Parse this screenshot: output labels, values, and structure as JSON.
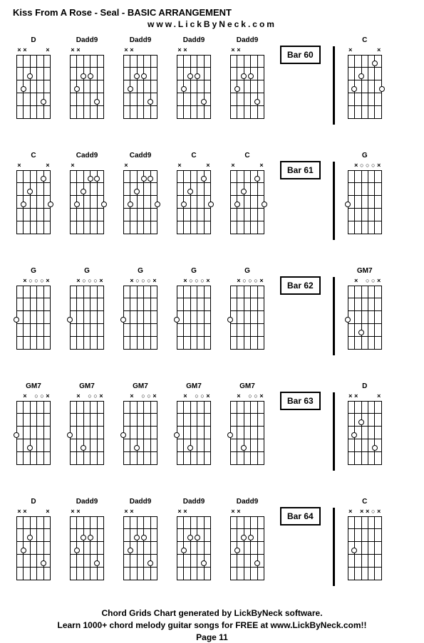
{
  "title": "Kiss From A Rose - Seal - BASIC ARRANGEMENT",
  "subtitle": "www.LickByNeck.com",
  "footer_line1": "Chord Grids Chart generated by LickByNeck software.",
  "footer_line2": "Learn 1000+ chord melody guitar songs for FREE at www.LickByNeck.com!!",
  "page_label": "Page 11",
  "frets": 5,
  "strings": 6,
  "marker_x": "×",
  "marker_o": "○",
  "marker_none": "",
  "rows": [
    {
      "bar": "Bar 60",
      "chords": [
        {
          "name": "D",
          "markers": [
            "x",
            "x",
            "",
            "",
            "",
            "x"
          ],
          "dots": [
            [
              2,
              2
            ],
            [
              3,
              1
            ],
            [
              4,
              4
            ]
          ]
        },
        {
          "name": "Dadd9",
          "markers": [
            "x",
            "x",
            "",
            "",
            "",
            ""
          ],
          "dots": [
            [
              2,
              2
            ],
            [
              3,
              1
            ],
            [
              2,
              3
            ],
            [
              4,
              4
            ]
          ]
        },
        {
          "name": "Dadd9",
          "markers": [
            "x",
            "x",
            "",
            "",
            "",
            ""
          ],
          "dots": [
            [
              2,
              2
            ],
            [
              3,
              1
            ],
            [
              2,
              3
            ],
            [
              4,
              4
            ]
          ]
        },
        {
          "name": "Dadd9",
          "markers": [
            "x",
            "x",
            "",
            "",
            "",
            ""
          ],
          "dots": [
            [
              2,
              2
            ],
            [
              3,
              1
            ],
            [
              2,
              3
            ],
            [
              4,
              4
            ]
          ]
        },
        {
          "name": "Dadd9",
          "markers": [
            "x",
            "x",
            "",
            "",
            "",
            ""
          ],
          "dots": [
            [
              2,
              2
            ],
            [
              3,
              1
            ],
            [
              2,
              3
            ],
            [
              4,
              4
            ]
          ]
        }
      ],
      "after": {
        "name": "C",
        "markers": [
          "x",
          "",
          "",
          "",
          "",
          "x"
        ],
        "dots": [
          [
            3,
            1
          ],
          [
            2,
            2
          ],
          [
            1,
            4
          ],
          [
            3,
            5
          ]
        ]
      }
    },
    {
      "bar": "Bar 61",
      "chords": [
        {
          "name": "C",
          "markers": [
            "x",
            "",
            "",
            "",
            "",
            "x"
          ],
          "dots": [
            [
              3,
              1
            ],
            [
              2,
              2
            ],
            [
              1,
              4
            ],
            [
              3,
              5
            ]
          ]
        },
        {
          "name": "Cadd9",
          "markers": [
            "x",
            "",
            "",
            "",
            "",
            ""
          ],
          "dots": [
            [
              3,
              1
            ],
            [
              2,
              2
            ],
            [
              1,
              4
            ],
            [
              1,
              3
            ],
            [
              3,
              5
            ]
          ]
        },
        {
          "name": "Cadd9",
          "markers": [
            "x",
            "",
            "",
            "",
            "",
            ""
          ],
          "dots": [
            [
              3,
              1
            ],
            [
              2,
              2
            ],
            [
              1,
              4
            ],
            [
              1,
              3
            ],
            [
              3,
              5
            ]
          ]
        },
        {
          "name": "C",
          "markers": [
            "x",
            "",
            "",
            "",
            "",
            "x"
          ],
          "dots": [
            [
              3,
              1
            ],
            [
              2,
              2
            ],
            [
              1,
              4
            ],
            [
              3,
              5
            ]
          ]
        },
        {
          "name": "C",
          "markers": [
            "x",
            "",
            "",
            "",
            "",
            "x"
          ],
          "dots": [
            [
              3,
              1
            ],
            [
              2,
              2
            ],
            [
              1,
              4
            ],
            [
              3,
              5
            ]
          ]
        }
      ],
      "after": {
        "name": "G",
        "markers": [
          "",
          "x",
          "o",
          "o",
          "o",
          "x"
        ],
        "dots": [
          [
            3,
            0
          ]
        ]
      }
    },
    {
      "bar": "Bar 62",
      "chords": [
        {
          "name": "G",
          "markers": [
            "",
            "x",
            "o",
            "o",
            "o",
            "x"
          ],
          "dots": [
            [
              3,
              0
            ]
          ]
        },
        {
          "name": "G",
          "markers": [
            "",
            "x",
            "o",
            "o",
            "o",
            "x"
          ],
          "dots": [
            [
              3,
              0
            ]
          ]
        },
        {
          "name": "G",
          "markers": [
            "",
            "x",
            "o",
            "o",
            "o",
            "x"
          ],
          "dots": [
            [
              3,
              0
            ]
          ]
        },
        {
          "name": "G",
          "markers": [
            "",
            "x",
            "o",
            "o",
            "o",
            "x"
          ],
          "dots": [
            [
              3,
              0
            ]
          ]
        },
        {
          "name": "G",
          "markers": [
            "",
            "x",
            "o",
            "o",
            "o",
            "x"
          ],
          "dots": [
            [
              3,
              0
            ]
          ]
        }
      ],
      "after": {
        "name": "GM7",
        "markers": [
          "",
          "x",
          "",
          "o",
          "o",
          "x"
        ],
        "dots": [
          [
            3,
            0
          ],
          [
            4,
            2
          ]
        ]
      }
    },
    {
      "bar": "Bar 63",
      "chords": [
        {
          "name": "GM7",
          "markers": [
            "",
            "x",
            "",
            "o",
            "o",
            "x"
          ],
          "dots": [
            [
              3,
              0
            ],
            [
              4,
              2
            ]
          ]
        },
        {
          "name": "GM7",
          "markers": [
            "",
            "x",
            "",
            "o",
            "o",
            "x"
          ],
          "dots": [
            [
              3,
              0
            ],
            [
              4,
              2
            ]
          ]
        },
        {
          "name": "GM7",
          "markers": [
            "",
            "x",
            "",
            "o",
            "o",
            "x"
          ],
          "dots": [
            [
              3,
              0
            ],
            [
              4,
              2
            ]
          ]
        },
        {
          "name": "GM7",
          "markers": [
            "",
            "x",
            "",
            "o",
            "o",
            "x"
          ],
          "dots": [
            [
              3,
              0
            ],
            [
              4,
              2
            ]
          ]
        },
        {
          "name": "GM7",
          "markers": [
            "",
            "x",
            "",
            "o",
            "o",
            "x"
          ],
          "dots": [
            [
              3,
              0
            ],
            [
              4,
              2
            ]
          ]
        }
      ],
      "after": {
        "name": "D",
        "markers": [
          "x",
          "x",
          "",
          "",
          "",
          "x"
        ],
        "dots": [
          [
            2,
            2
          ],
          [
            3,
            1
          ],
          [
            4,
            4
          ]
        ]
      }
    },
    {
      "bar": "Bar 64",
      "chords": [
        {
          "name": "D",
          "markers": [
            "x",
            "x",
            "",
            "",
            "",
            "x"
          ],
          "dots": [
            [
              2,
              2
            ],
            [
              3,
              1
            ],
            [
              4,
              4
            ]
          ]
        },
        {
          "name": "Dadd9",
          "markers": [
            "x",
            "x",
            "",
            "",
            "",
            ""
          ],
          "dots": [
            [
              2,
              2
            ],
            [
              3,
              1
            ],
            [
              2,
              3
            ],
            [
              4,
              4
            ]
          ]
        },
        {
          "name": "Dadd9",
          "markers": [
            "x",
            "x",
            "",
            "",
            "",
            ""
          ],
          "dots": [
            [
              2,
              2
            ],
            [
              3,
              1
            ],
            [
              2,
              3
            ],
            [
              4,
              4
            ]
          ]
        },
        {
          "name": "Dadd9",
          "markers": [
            "x",
            "x",
            "",
            "",
            "",
            ""
          ],
          "dots": [
            [
              2,
              2
            ],
            [
              3,
              1
            ],
            [
              2,
              3
            ],
            [
              4,
              4
            ]
          ]
        },
        {
          "name": "Dadd9",
          "markers": [
            "x",
            "x",
            "",
            "",
            "",
            ""
          ],
          "dots": [
            [
              2,
              2
            ],
            [
              3,
              1
            ],
            [
              2,
              3
            ],
            [
              4,
              4
            ]
          ]
        }
      ],
      "after": {
        "name": "C",
        "markers": [
          "x",
          "",
          "x",
          "x",
          "o",
          "x"
        ],
        "dots": [
          [
            3,
            1
          ]
        ]
      }
    }
  ]
}
